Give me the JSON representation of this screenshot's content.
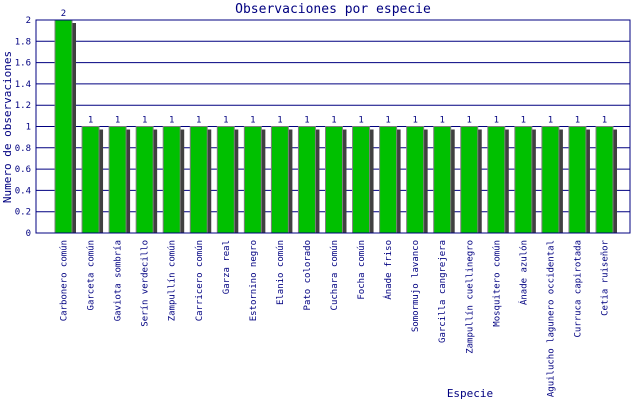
{
  "chart_data": {
    "type": "bar",
    "title": "Observaciones por especie",
    "xlabel": "Especie",
    "ylabel": "Numero de observaciones",
    "ylim": [
      0,
      2
    ],
    "yticks": [
      "0",
      "0.2",
      "0.4",
      "0.6",
      "0.8",
      "1",
      "1.2",
      "1.4",
      "1.6",
      "1.8",
      "2"
    ],
    "grid": true,
    "categories": [
      "Carbonero común",
      "Garceta común",
      "Gaviota sombría",
      "Serín verdecillo",
      "Zampullín común",
      "Carricero común",
      "Garza real",
      "Estornino negro",
      "Elanio común",
      "Pato colorado",
      "Cuchara común",
      "Focha común",
      "Ánade friso",
      "Somormujo lavanco",
      "Garcilla cangrejera",
      "Zampullín cuellinegro",
      "Mosquitero común",
      "Ánade azulón",
      "Aguilucho lagunero occidental",
      "Curruca capirotada",
      "Cetia ruiseñor"
    ],
    "values": [
      2,
      1,
      1,
      1,
      1,
      1,
      1,
      1,
      1,
      1,
      1,
      1,
      1,
      1,
      1,
      1,
      1,
      1,
      1,
      1,
      1
    ],
    "colors": {
      "bar": "#00c000",
      "shadow": "#404040",
      "grid": "#000080",
      "text": "#000080"
    }
  }
}
